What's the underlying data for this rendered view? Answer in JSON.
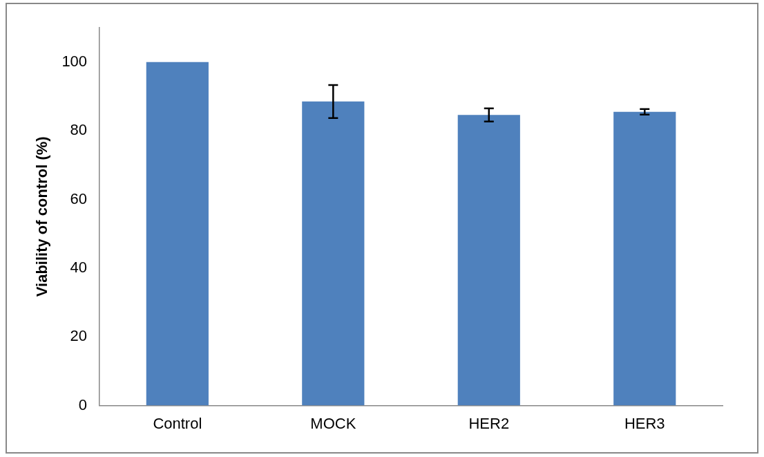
{
  "chart_data": {
    "type": "bar",
    "ylabel": "Viability of control (%)",
    "categories": [
      "Control",
      "MOCK",
      "HER2",
      "HER3"
    ],
    "values": [
      100,
      88.5,
      84.6,
      85.5
    ],
    "errors": [
      null,
      4.8,
      1.9,
      0.8
    ],
    "color": "#4f81bd",
    "ylim": [
      0,
      110
    ],
    "yticks": [
      0,
      20,
      40,
      60,
      80,
      100
    ],
    "grid": false,
    "legend": false
  }
}
